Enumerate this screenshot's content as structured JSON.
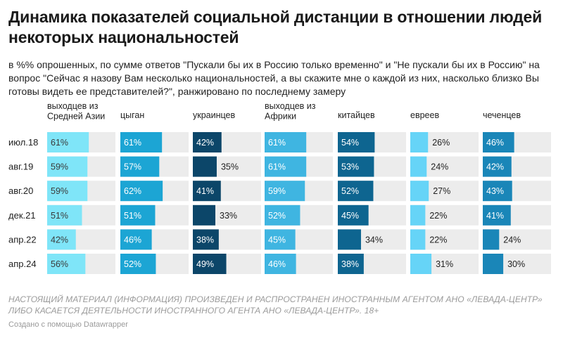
{
  "title": "Динамика показателей социальной дистанции в отношении людей некоторых национальностей",
  "subtitle": "в %% опрошенных, по сумме ответов \"Пускали бы их в Россию только временно\" и \"Не пускали бы их в Россию\" на вопрос \"Сейчас я назову Вам несколько национальностей, а вы скажите мне о каждой из них, насколько близко Вы готовы видеть ее представителей?\", ранжировано по последнему замеру",
  "note": "НАСТОЯЩИЙ МАТЕРИАЛ (ИНФОРМАЦИЯ) ПРОИЗВЕДЕН И РАСПРОСТРАНЕН ИНОСТРАННЫМ АГЕНТОМ АНО «ЛЕВАДА-ЦЕНТР» ЛИБО КАСАЕТСЯ ДЕЯТЕЛЬНОСТИ ИНОСТРАННОГО АГЕНТА АНО «ЛЕВАДА-ЦЕНТР». 18+",
  "credit": "Создано с помощью Datawrapper",
  "chart_data": {
    "type": "bar",
    "layout": "small-multiples-horizontal",
    "categories": [
      "июл.18",
      "авг.19",
      "авг.20",
      "дек.21",
      "апр.22",
      "апр.24"
    ],
    "xlim": [
      0,
      100
    ],
    "value_suffix": "%",
    "series": [
      {
        "name": "выходцев из Средней Азии",
        "label_lines": [
          "выходцев из",
          "Средней Азии"
        ],
        "color": "#7fe5f8",
        "values": [
          61,
          59,
          59,
          51,
          42,
          56
        ]
      },
      {
        "name": "цыган",
        "label_lines": [
          "цыган"
        ],
        "color": "#1ca5d4",
        "values": [
          61,
          57,
          62,
          51,
          46,
          52
        ]
      },
      {
        "name": "украинцев",
        "label_lines": [
          "украинцев"
        ],
        "color": "#0c4669",
        "values": [
          42,
          35,
          41,
          33,
          38,
          49
        ]
      },
      {
        "name": "выходцев из Африки",
        "label_lines": [
          "выходцев из",
          "Африки"
        ],
        "color": "#3fb5e1",
        "values": [
          61,
          61,
          59,
          52,
          45,
          46
        ]
      },
      {
        "name": "китайцев",
        "label_lines": [
          "китайцев"
        ],
        "color": "#0e6590",
        "values": [
          54,
          53,
          52,
          45,
          34,
          38
        ]
      },
      {
        "name": "евреев",
        "label_lines": [
          "евреев"
        ],
        "color": "#66d4f7",
        "values": [
          26,
          24,
          27,
          22,
          22,
          31
        ]
      },
      {
        "name": "чеченцев",
        "label_lines": [
          "чеченцев"
        ],
        "color": "#1a86b8",
        "values": [
          46,
          42,
          43,
          41,
          24,
          30
        ]
      }
    ]
  }
}
